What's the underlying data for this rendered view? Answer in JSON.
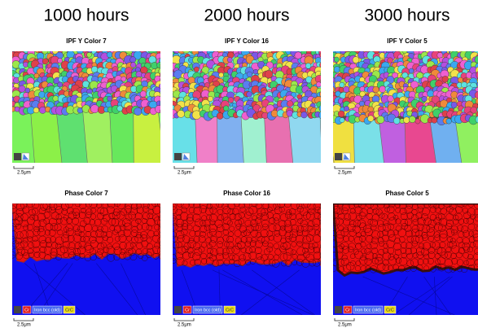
{
  "columns": [
    {
      "heading": "1000 hours",
      "ipf_title": "IPF Y Color 7",
      "ipf_scale": "2.5μm",
      "phase_title": "Phase Color 7",
      "phase_scale": "2.5μm",
      "legend": [
        "Cr",
        "Iron bcc (old)",
        "CrC"
      ]
    },
    {
      "heading": "2000 hours",
      "ipf_title": "IPF Y Color 16",
      "ipf_scale": "2.5μm",
      "phase_title": "Phase Color 16",
      "phase_scale": "2.5μm",
      "legend": [
        "Cr",
        "Iron bcc (old)",
        "CrC"
      ]
    },
    {
      "heading": "3000 hours",
      "ipf_title": "IPF Y Color 5",
      "ipf_scale": "2.5μm",
      "phase_title": "Phase Color 5",
      "phase_scale": "2.5μm",
      "legend": [
        "Cr",
        "Iron bcc (old)",
        "CrC"
      ]
    }
  ]
}
